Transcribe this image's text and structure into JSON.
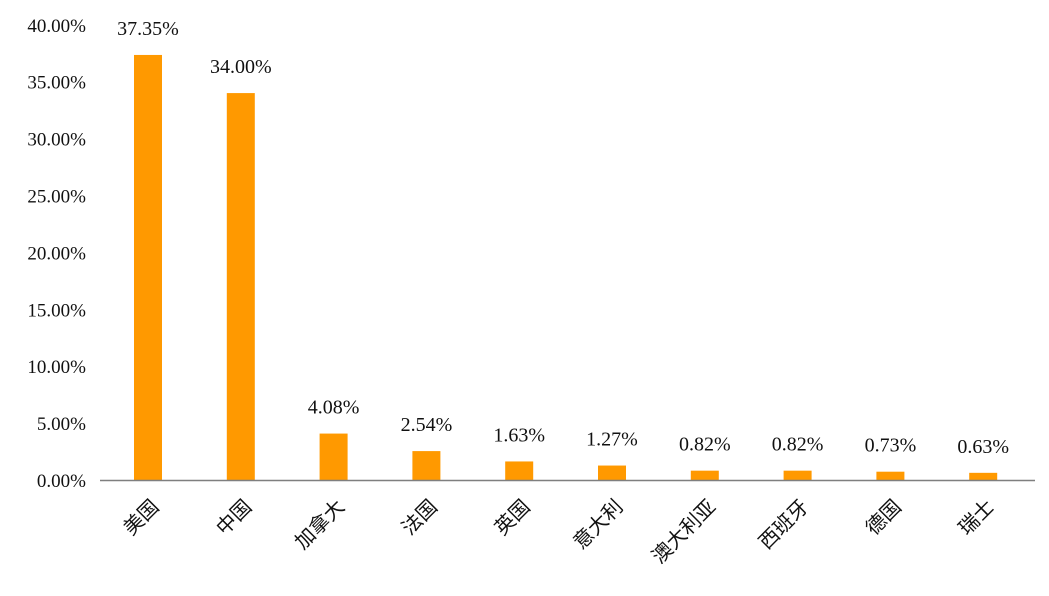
{
  "chart_data": {
    "type": "bar",
    "title": "",
    "xlabel": "",
    "ylabel": "",
    "categories": [
      "美国",
      "中国",
      "加拿大",
      "法国",
      "英国",
      "意大利",
      "澳大利亚",
      "西班牙",
      "德国",
      "瑞士"
    ],
    "values": [
      37.35,
      34.0,
      4.08,
      2.54,
      1.63,
      1.27,
      0.82,
      0.82,
      0.73,
      0.63
    ],
    "data_labels": [
      "37.35%",
      "34.00%",
      "4.08%",
      "2.54%",
      "1.63%",
      "1.27%",
      "0.82%",
      "0.82%",
      "0.73%",
      "0.63%"
    ],
    "yticks": [
      0,
      5,
      10,
      15,
      20,
      25,
      30,
      35,
      40
    ],
    "ytick_labels": [
      "0.00%",
      "5.00%",
      "10.00%",
      "15.00%",
      "20.00%",
      "25.00%",
      "30.00%",
      "35.00%",
      "40.00%"
    ],
    "ylim": [
      0,
      40
    ],
    "grid": false,
    "legend": "none",
    "bar_color": "#FF9900",
    "axis_color": "#7f7f7f"
  }
}
